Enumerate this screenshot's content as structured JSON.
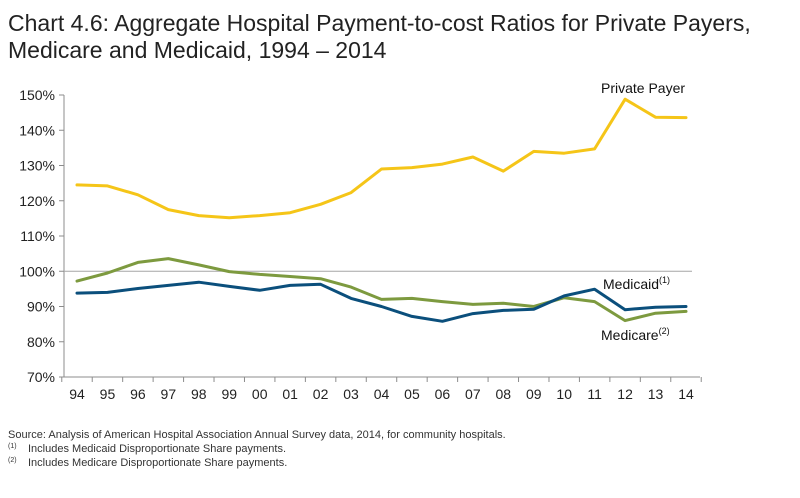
{
  "title_line1": "Chart 4.6: Aggregate Hospital Payment-to-cost Ratios for Private Payers,",
  "title_line2": "Medicare and Medicaid, 1994 – 2014",
  "chart_data": {
    "type": "line",
    "title": "Chart 4.6: Aggregate Hospital Payment-to-cost Ratios for Private Payers, Medicare and Medicaid, 1994 – 2014",
    "xlabel": "",
    "ylabel": "",
    "categories": [
      "94",
      "95",
      "96",
      "97",
      "98",
      "99",
      "00",
      "01",
      "02",
      "03",
      "04",
      "05",
      "06",
      "07",
      "08",
      "09",
      "10",
      "11",
      "12",
      "13",
      "14"
    ],
    "ylim": [
      70,
      150
    ],
    "yticks": [
      70,
      80,
      90,
      100,
      110,
      120,
      130,
      140,
      150
    ],
    "ytick_labels": [
      "70%",
      "80%",
      "90%",
      "100%",
      "110%",
      "120%",
      "130%",
      "140%",
      "150%"
    ],
    "reference_line": 100,
    "series": [
      {
        "name": "Private Payer",
        "label": "Private Payer",
        "label_sup": "",
        "color": "#f5c518",
        "values": [
          124.5,
          124.2,
          121.7,
          117.5,
          115.8,
          115.2,
          115.8,
          116.6,
          119.0,
          122.3,
          129.0,
          129.4,
          130.4,
          132.4,
          128.4,
          134.0,
          133.5,
          134.7,
          148.8,
          143.7,
          143.6
        ]
      },
      {
        "name": "Medicare",
        "label": "Medicare",
        "label_sup": "(2)",
        "color": "#7d9a3f",
        "values": [
          97.2,
          99.5,
          102.5,
          103.6,
          101.8,
          99.9,
          99.1,
          98.5,
          97.9,
          95.5,
          92.0,
          92.3,
          91.4,
          90.6,
          90.9,
          90.0,
          92.5,
          91.4,
          86.0,
          88.1,
          88.6
        ]
      },
      {
        "name": "Medicaid",
        "label": "Medicaid",
        "label_sup": "(1)",
        "color": "#0b4f7c",
        "values": [
          93.8,
          94.0,
          95.1,
          96.0,
          96.9,
          95.7,
          94.6,
          96.0,
          96.3,
          92.3,
          90.0,
          87.2,
          85.8,
          88.0,
          88.9,
          89.2,
          93.0,
          94.9,
          89.1,
          89.8,
          90.0
        ]
      }
    ]
  },
  "notes": {
    "source": "Source: Analysis of American Hospital Association Annual Survey data, 2014, for community hospitals.",
    "note1_marker": "(1)",
    "note1_text": "Includes Medicaid Disproportionate Share payments.",
    "note2_marker": "(2)",
    "note2_text": "Includes Medicare Disproportionate Share payments."
  }
}
